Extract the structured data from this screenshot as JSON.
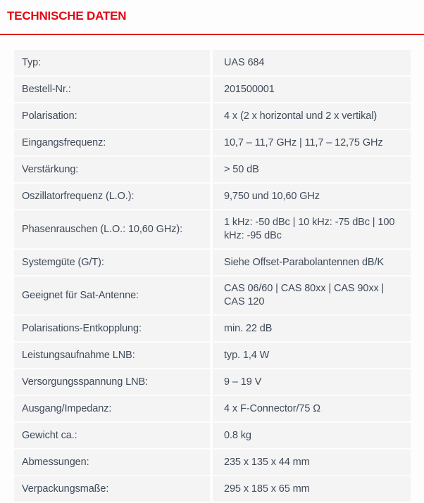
{
  "header": {
    "title": "TECHNISCHE DATEN"
  },
  "colors": {
    "accent_red": "#e30613",
    "row_background": "#f4f4f5",
    "text": "#3f4a58"
  },
  "table": {
    "rows": [
      {
        "label": "Typ:",
        "value": "UAS 684"
      },
      {
        "label": "Bestell-Nr.:",
        "value": "201500001"
      },
      {
        "label": "Polarisation:",
        "value": "4 x (2 x horizontal und 2 x vertikal)"
      },
      {
        "label": "Eingangsfrequenz:",
        "value": "10,7 – 11,7 GHz | 11,7 – 12,75 GHz"
      },
      {
        "label": "Verstärkung:",
        "value": "> 50 dB"
      },
      {
        "label": "Oszillatorfrequenz (L.O.):",
        "value": "9,750 und 10,60 GHz"
      },
      {
        "label": "Phasenrauschen (L.O.: 10,60 GHz):",
        "value": "1 kHz: -50 dBc | 10 kHz: -75 dBc | 100 kHz: -95 dBc"
      },
      {
        "label": "Systemgüte (G/T):",
        "value": "Siehe Offset-Parabolantennen dB/K"
      },
      {
        "label": "Geeignet für Sat-Antenne:",
        "value": "CAS 06/60 | CAS 80xx | CAS 90xx | CAS 120"
      },
      {
        "label": "Polarisations-Entkopplung:",
        "value": "min. 22 dB"
      },
      {
        "label": "Leistungsaufnahme LNB:",
        "value": "typ. 1,4 W"
      },
      {
        "label": "Versorgungsspannung LNB:",
        "value": "9 – 19 V"
      },
      {
        "label": "Ausgang/Impedanz:",
        "value": "4 x F-Connector/75 Ω"
      },
      {
        "label": "Gewicht ca.:",
        "value": "0.8 kg"
      },
      {
        "label": "Abmessungen:",
        "value": "235 x 135 x 44 mm"
      },
      {
        "label": "Verpackungsmaße:",
        "value": "295 x 185 x 65 mm"
      }
    ]
  }
}
